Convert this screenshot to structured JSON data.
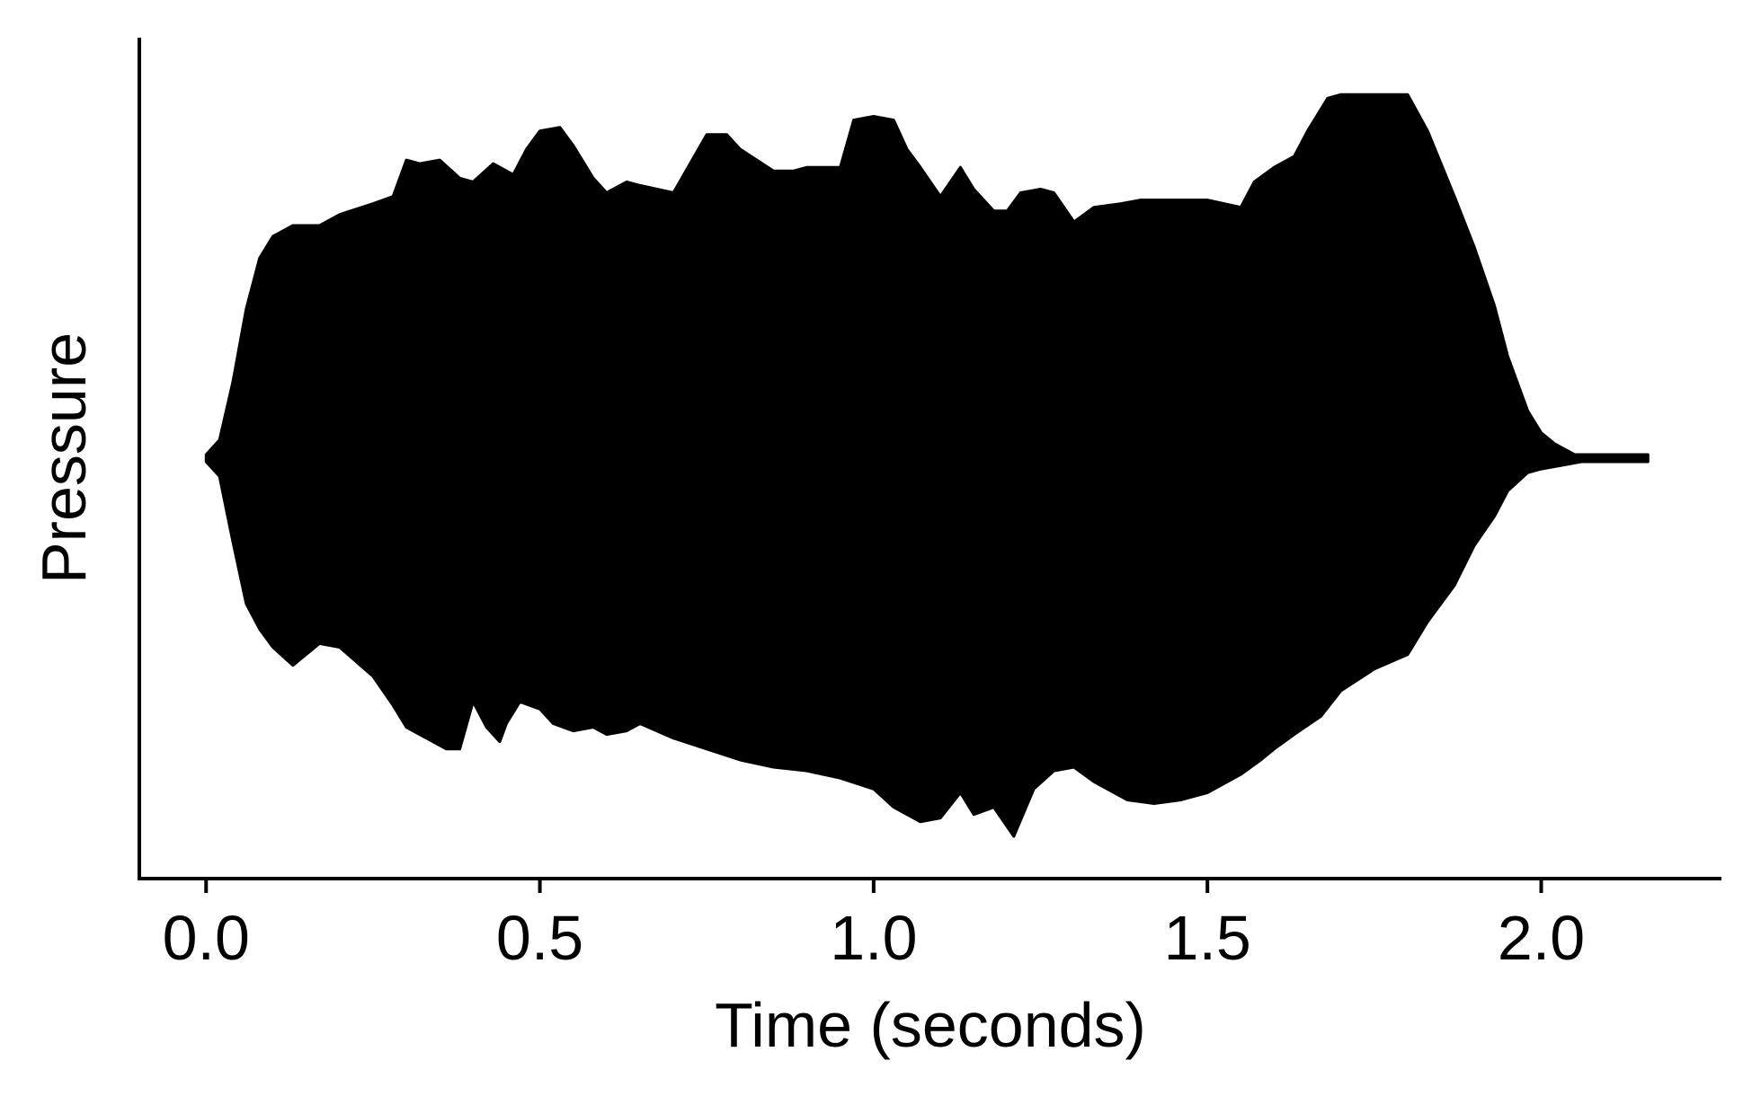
{
  "chart_data": {
    "type": "area",
    "xlabel": "Time (seconds)",
    "ylabel": "Pressure",
    "xlim": [
      -0.1,
      2.27
    ],
    "ylim": [
      -1.05,
      1.05
    ],
    "x_ticks": [
      0.0,
      0.5,
      1.0,
      1.5,
      2.0
    ],
    "x_tick_labels": [
      "0.0",
      "0.5",
      "1.0",
      "1.5",
      "2.0"
    ],
    "y_ticks_shown": false,
    "grid": false,
    "legend": "none",
    "fill_color": "#000000",
    "axis_color": "#000000",
    "series": [
      {
        "upper_envelope": {
          "x": [
            0.0,
            0.02,
            0.04,
            0.06,
            0.08,
            0.1,
            0.13,
            0.17,
            0.2,
            0.25,
            0.28,
            0.3,
            0.32,
            0.35,
            0.38,
            0.4,
            0.43,
            0.46,
            0.48,
            0.5,
            0.53,
            0.55,
            0.58,
            0.6,
            0.63,
            0.65,
            0.7,
            0.75,
            0.78,
            0.8,
            0.85,
            0.88,
            0.9,
            0.95,
            0.97,
            1.0,
            1.03,
            1.05,
            1.07,
            1.1,
            1.13,
            1.15,
            1.18,
            1.2,
            1.22,
            1.25,
            1.27,
            1.3,
            1.33,
            1.37,
            1.4,
            1.45,
            1.5,
            1.55,
            1.57,
            1.6,
            1.63,
            1.65,
            1.68,
            1.7,
            1.75,
            1.8,
            1.83,
            1.87,
            1.9,
            1.93,
            1.95,
            1.98,
            2.0,
            2.02,
            2.05,
            2.08,
            2.12,
            2.16
          ],
          "y": [
            0.01,
            0.05,
            0.21,
            0.41,
            0.55,
            0.61,
            0.64,
            0.64,
            0.67,
            0.7,
            0.72,
            0.82,
            0.81,
            0.82,
            0.77,
            0.76,
            0.81,
            0.78,
            0.85,
            0.9,
            0.91,
            0.86,
            0.77,
            0.73,
            0.76,
            0.75,
            0.73,
            0.89,
            0.89,
            0.85,
            0.79,
            0.79,
            0.8,
            0.8,
            0.93,
            0.94,
            0.93,
            0.85,
            0.8,
            0.72,
            0.8,
            0.74,
            0.68,
            0.68,
            0.73,
            0.74,
            0.73,
            0.65,
            0.69,
            0.7,
            0.71,
            0.71,
            0.71,
            0.69,
            0.76,
            0.8,
            0.83,
            0.9,
            0.99,
            1.0,
            1.0,
            1.0,
            0.9,
            0.72,
            0.58,
            0.42,
            0.28,
            0.13,
            0.07,
            0.04,
            0.01,
            0.01,
            0.01,
            0.01
          ]
        },
        "lower_envelope": {
          "x": [
            0.0,
            0.02,
            0.04,
            0.06,
            0.08,
            0.1,
            0.13,
            0.17,
            0.2,
            0.25,
            0.28,
            0.3,
            0.33,
            0.36,
            0.38,
            0.4,
            0.42,
            0.44,
            0.45,
            0.47,
            0.5,
            0.52,
            0.55,
            0.58,
            0.6,
            0.63,
            0.65,
            0.7,
            0.75,
            0.8,
            0.85,
            0.9,
            0.95,
            1.0,
            1.03,
            1.07,
            1.1,
            1.13,
            1.15,
            1.18,
            1.21,
            1.24,
            1.27,
            1.3,
            1.33,
            1.38,
            1.42,
            1.46,
            1.5,
            1.55,
            1.58,
            1.6,
            1.63,
            1.67,
            1.7,
            1.75,
            1.8,
            1.83,
            1.87,
            1.9,
            1.93,
            1.95,
            1.98,
            2.0,
            2.03,
            2.06,
            2.1,
            2.16
          ],
          "y": [
            -0.01,
            -0.05,
            -0.23,
            -0.4,
            -0.47,
            -0.52,
            -0.57,
            -0.51,
            -0.52,
            -0.6,
            -0.68,
            -0.74,
            -0.77,
            -0.8,
            -0.8,
            -0.67,
            -0.74,
            -0.78,
            -0.73,
            -0.67,
            -0.69,
            -0.73,
            -0.75,
            -0.74,
            -0.76,
            -0.75,
            -0.73,
            -0.77,
            -0.8,
            -0.83,
            -0.85,
            -0.86,
            -0.88,
            -0.91,
            -0.96,
            -1.0,
            -0.99,
            -0.92,
            -0.98,
            -0.96,
            -1.04,
            -0.91,
            -0.86,
            -0.85,
            -0.89,
            -0.94,
            -0.95,
            -0.94,
            -0.92,
            -0.87,
            -0.83,
            -0.8,
            -0.76,
            -0.71,
            -0.64,
            -0.58,
            -0.54,
            -0.45,
            -0.35,
            -0.24,
            -0.16,
            -0.09,
            -0.04,
            -0.03,
            -0.02,
            -0.01,
            -0.01,
            -0.01
          ]
        }
      }
    ]
  }
}
